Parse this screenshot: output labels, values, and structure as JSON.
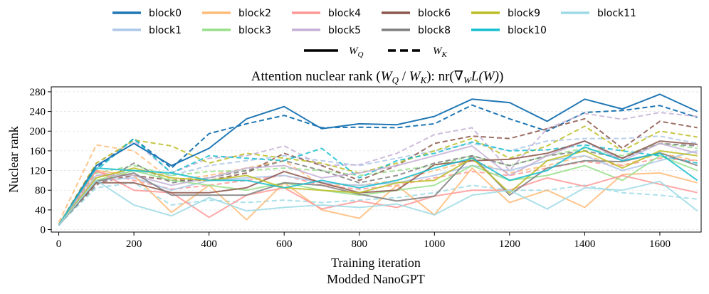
{
  "chart_data": {
    "type": "line",
    "title": "Attention nuclear rank (W_Q / W_K): nr(∇_W L(W))",
    "title_parts": {
      "prefix": "Attention nuclear rank (",
      "wq_base": "W",
      "wq_sub": "Q",
      "slash": " / ",
      "wk_base": "W",
      "wk_sub": "K",
      "mid": "): nr(",
      "nabla": "∇",
      "w_sub": "W",
      "l_letter": "L",
      "w_arg": "(W)",
      "close": ")"
    },
    "xlabel": "Training iteration",
    "subtitle": "Modded NanoGPT",
    "ylabel": "Nuclear rank",
    "xlim": [
      -20,
      1710
    ],
    "ylim": [
      -5,
      290
    ],
    "xticks": [
      "0",
      "200",
      "400",
      "600",
      "800",
      "1000",
      "1200",
      "1400",
      "1600"
    ],
    "yticks": [
      "0",
      "40",
      "80",
      "120",
      "160",
      "200",
      "240",
      "280"
    ],
    "x": [
      0,
      100,
      200,
      300,
      400,
      500,
      600,
      700,
      800,
      900,
      1000,
      1100,
      1200,
      1300,
      1400,
      1500,
      1600,
      1700
    ],
    "style_legend": [
      {
        "label": "W_Q",
        "base": "W",
        "sub": "Q",
        "dash": "solid"
      },
      {
        "label": "W_K",
        "base": "W",
        "sub": "K",
        "dash": "dashed"
      }
    ],
    "series": [
      {
        "name": "block0",
        "color": "#1f77b4",
        "wq": [
          10,
          130,
          175,
          130,
          165,
          225,
          250,
          205,
          215,
          213,
          230,
          265,
          258,
          220,
          265,
          245,
          275,
          240
        ],
        "wk": [
          10,
          125,
          185,
          125,
          195,
          215,
          232,
          207,
          208,
          207,
          215,
          253,
          225,
          200,
          238,
          242,
          252,
          228
        ]
      },
      {
        "name": "block1",
        "color": "#aec7e8",
        "wq": [
          8,
          100,
          105,
          80,
          100,
          105,
          110,
          95,
          90,
          95,
          110,
          130,
          120,
          140,
          150,
          120,
          140,
          160
        ],
        "wk": [
          8,
          110,
          120,
          110,
          130,
          140,
          150,
          140,
          130,
          145,
          160,
          175,
          160,
          180,
          185,
          185,
          190,
          175
        ]
      },
      {
        "name": "block2",
        "color": "#ffbb78",
        "wq": [
          12,
          120,
          110,
          35,
          90,
          20,
          95,
          40,
          23,
          90,
          30,
          125,
          55,
          80,
          45,
          112,
          115,
          95
        ],
        "wk": [
          15,
          172,
          160,
          100,
          110,
          125,
          140,
          90,
          90,
          100,
          120,
          140,
          115,
          130,
          150,
          130,
          155,
          140
        ]
      },
      {
        "name": "block3",
        "color": "#98df8a",
        "wq": [
          10,
          100,
          120,
          100,
          90,
          80,
          95,
          80,
          70,
          80,
          90,
          130,
          100,
          110,
          130,
          100,
          150,
          120
        ],
        "wk": [
          10,
          115,
          130,
          110,
          118,
          120,
          125,
          120,
          110,
          120,
          130,
          150,
          130,
          150,
          165,
          150,
          175,
          165
        ]
      },
      {
        "name": "block4",
        "color": "#ff9896",
        "wq": [
          10,
          120,
          80,
          75,
          25,
          70,
          85,
          42,
          58,
          45,
          68,
          80,
          80,
          105,
          88,
          110,
          92,
          75
        ],
        "wk": [
          10,
          118,
          100,
          82,
          90,
          100,
          110,
          90,
          82,
          90,
          105,
          118,
          110,
          125,
          138,
          130,
          145,
          140
        ]
      },
      {
        "name": "block5",
        "color": "#c5b0d5",
        "wq": [
          10,
          110,
          110,
          90,
          105,
          125,
          130,
          105,
          115,
          130,
          150,
          170,
          110,
          150,
          180,
          140,
          175,
          155
        ],
        "wk": [
          10,
          135,
          180,
          115,
          145,
          150,
          170,
          130,
          132,
          155,
          193,
          207,
          120,
          205,
          236,
          224,
          238,
          230
        ]
      },
      {
        "name": "block6",
        "color": "#8c564b",
        "wq": [
          10,
          95,
          95,
          75,
          75,
          85,
          118,
          95,
          75,
          80,
          132,
          140,
          143,
          155,
          180,
          145,
          180,
          173
        ]
      },
      {
        "name": "block6",
        "color": "#8c564b",
        "wk": [
          10,
          95,
          110,
          100,
          100,
          115,
          155,
          130,
          100,
          130,
          175,
          190,
          185,
          205,
          225,
          165,
          220,
          207
        ]
      },
      {
        "name": "block8",
        "color": "#7f7f7f",
        "wq": [
          10,
          98,
          115,
          70,
          70,
          70,
          95,
          90,
          72,
          58,
          68,
          150,
          70,
          125,
          140,
          138,
          156,
          130
        ],
        "wk": [
          10,
          90,
          135,
          95,
          105,
          120,
          140,
          120,
          95,
          110,
          135,
          150,
          130,
          150,
          160,
          145,
          175,
          170
        ]
      },
      {
        "name": "block9",
        "color": "#bcbd22",
        "wq": [
          10,
          105,
          125,
          105,
          100,
          110,
          85,
          80,
          75,
          95,
          100,
          145,
          75,
          140,
          160,
          125,
          160,
          150
        ],
        "wk": [
          10,
          135,
          182,
          170,
          135,
          155,
          145,
          135,
          115,
          135,
          160,
          185,
          145,
          170,
          210,
          160,
          200,
          188
        ]
      },
      {
        "name": "block10",
        "color": "#17becf",
        "wq": [
          10,
          125,
          120,
          115,
          100,
          100,
          85,
          100,
          85,
          100,
          125,
          145,
          100,
          120,
          168,
          140,
          155,
          100
        ],
        "wk": [
          10,
          120,
          185,
          115,
          150,
          145,
          140,
          165,
          105,
          140,
          155,
          178,
          160,
          162,
          172,
          160,
          150,
          135
        ]
      },
      {
        "name": "block11",
        "color": "#9edae5",
        "wq": [
          10,
          100,
          50,
          28,
          65,
          38,
          45,
          50,
          45,
          52,
          30,
          70,
          80,
          42,
          85,
          80,
          98,
          38
        ],
        "wk": [
          10,
          85,
          95,
          50,
          60,
          55,
          60,
          55,
          60,
          65,
          75,
          90,
          80,
          80,
          90,
          75,
          70,
          62
        ]
      }
    ]
  }
}
